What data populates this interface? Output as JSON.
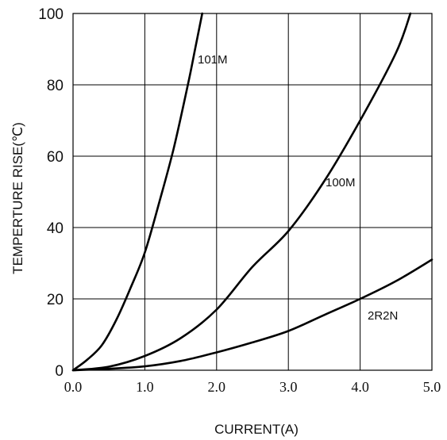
{
  "chart_data": {
    "type": "line",
    "xlabel": "CURRENT(A)",
    "ylabel": "TEMPERTURE RISE(℃)",
    "xlim": [
      0,
      5
    ],
    "ylim": [
      0,
      100
    ],
    "xticks": [
      "0.0",
      "1.0",
      "2.0",
      "3.0",
      "4.0",
      "5.0"
    ],
    "yticks": [
      "0",
      "20",
      "40",
      "60",
      "80",
      "100"
    ],
    "grid": true,
    "series": [
      {
        "name": "101M",
        "x": [
          0,
          0.2,
          0.4,
          0.6,
          0.8,
          1.0,
          1.2,
          1.4,
          1.6,
          1.7,
          1.8
        ],
        "y": [
          0,
          3,
          7,
          14,
          23,
          33,
          47,
          62,
          80,
          90,
          100
        ]
      },
      {
        "name": "100M",
        "x": [
          0,
          0.5,
          1.0,
          1.5,
          2.0,
          2.5,
          3.0,
          3.5,
          4.0,
          4.5,
          4.7
        ],
        "y": [
          0,
          1,
          4,
          9,
          17,
          29,
          39,
          53,
          70,
          89,
          100
        ]
      },
      {
        "name": "2R2N",
        "x": [
          0,
          0.5,
          1.0,
          1.5,
          2.0,
          2.5,
          3.0,
          3.5,
          4.0,
          4.5,
          5.0
        ],
        "y": [
          0,
          0.4,
          1.1,
          2.6,
          5,
          7.8,
          11,
          15.5,
          20,
          25,
          31
        ]
      }
    ]
  }
}
